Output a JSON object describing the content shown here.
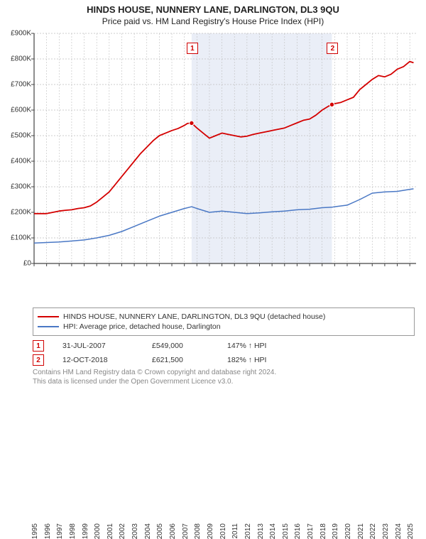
{
  "title": "HINDS HOUSE, NUNNERY LANE, DARLINGTON, DL3 9QU",
  "subtitle": "Price paid vs. HM Land Registry's House Price Index (HPI)",
  "chart": {
    "type": "line",
    "background_color": "#ffffff",
    "axis_color": "#444444",
    "grid_color": "#bfbfbf",
    "band_fill": "#eaeef7",
    "band_start_year": 2007.58,
    "band_end_year": 2018.78,
    "ylim": [
      0,
      900000
    ],
    "y_ticks": [
      0,
      100000,
      200000,
      300000,
      400000,
      500000,
      600000,
      700000,
      800000,
      900000
    ],
    "y_tick_labels": [
      "£0",
      "£100K",
      "£200K",
      "£300K",
      "£400K",
      "£500K",
      "£600K",
      "£700K",
      "£800K",
      "£900K"
    ],
    "xlim": [
      1995,
      2025.5
    ],
    "x_ticks": [
      1995,
      1996,
      1997,
      1998,
      1999,
      2000,
      2001,
      2002,
      2003,
      2004,
      2005,
      2006,
      2007,
      2008,
      2009,
      2010,
      2011,
      2012,
      2013,
      2014,
      2015,
      2016,
      2017,
      2018,
      2019,
      2020,
      2021,
      2022,
      2023,
      2024,
      2025
    ],
    "axis_fontsize": 10,
    "series": [
      {
        "id": "property",
        "color": "#d40000",
        "line_width": 1.8,
        "label": "HINDS HOUSE, NUNNERY LANE, DARLINGTON, DL3 9QU (detached house)",
        "x": [
          1995,
          1995.5,
          1996,
          1996.5,
          1997,
          1997.5,
          1998,
          1998.5,
          1999,
          1999.5,
          2000,
          2000.5,
          2001,
          2001.5,
          2002,
          2002.5,
          2003,
          2003.5,
          2004,
          2004.5,
          2005,
          2005.5,
          2006,
          2006.5,
          2007,
          2007.25,
          2007.58,
          2008,
          2008.5,
          2009,
          2009.5,
          2010,
          2010.5,
          2011,
          2011.5,
          2012,
          2012.5,
          2013,
          2013.5,
          2014,
          2014.5,
          2015,
          2015.5,
          2016,
          2016.5,
          2017,
          2017.5,
          2018,
          2018.5,
          2018.78,
          2019,
          2019.5,
          2020,
          2020.5,
          2021,
          2021.5,
          2022,
          2022.5,
          2023,
          2023.5,
          2024,
          2024.5,
          2025,
          2025.3
        ],
        "y": [
          195000,
          195000,
          195000,
          200000,
          205000,
          208000,
          210000,
          215000,
          218000,
          225000,
          240000,
          260000,
          280000,
          310000,
          340000,
          370000,
          400000,
          430000,
          455000,
          480000,
          500000,
          510000,
          520000,
          528000,
          540000,
          548000,
          549000,
          530000,
          510000,
          490000,
          500000,
          510000,
          505000,
          500000,
          495000,
          498000,
          505000,
          510000,
          515000,
          520000,
          525000,
          530000,
          540000,
          550000,
          560000,
          565000,
          580000,
          600000,
          615000,
          621500,
          625000,
          630000,
          640000,
          650000,
          680000,
          700000,
          720000,
          735000,
          730000,
          740000,
          760000,
          770000,
          790000,
          785000
        ]
      },
      {
        "id": "hpi",
        "color": "#4a78c5",
        "line_width": 1.5,
        "label": "HPI: Average price, detached house, Darlington",
        "x": [
          1995,
          1996,
          1997,
          1998,
          1999,
          2000,
          2001,
          2002,
          2003,
          2004,
          2005,
          2006,
          2007,
          2007.58,
          2008,
          2009,
          2010,
          2011,
          2012,
          2013,
          2014,
          2015,
          2016,
          2017,
          2018,
          2018.78,
          2019,
          2020,
          2021,
          2022,
          2023,
          2024,
          2025,
          2025.3
        ],
        "y": [
          80000,
          82000,
          84000,
          88000,
          92000,
          100000,
          110000,
          125000,
          145000,
          165000,
          185000,
          200000,
          215000,
          222000,
          215000,
          200000,
          205000,
          200000,
          195000,
          198000,
          202000,
          205000,
          210000,
          212000,
          218000,
          220000,
          222000,
          228000,
          250000,
          275000,
          280000,
          282000,
          290000,
          292000
        ]
      }
    ],
    "markers": [
      {
        "n": "1",
        "x": 2007.58,
        "y": 549000,
        "badge_y": 844000
      },
      {
        "n": "2",
        "x": 2018.78,
        "y": 621500,
        "badge_y": 844000
      }
    ]
  },
  "legend": {
    "items": [
      {
        "series": "property"
      },
      {
        "series": "hpi"
      }
    ]
  },
  "marker_rows": [
    {
      "n": "1",
      "date": "31-JUL-2007",
      "price": "£549,000",
      "hpi": "147% ↑ HPI"
    },
    {
      "n": "2",
      "date": "12-OCT-2018",
      "price": "£621,500",
      "hpi": "182% ↑ HPI"
    }
  ],
  "footer": {
    "line1": "Contains HM Land Registry data © Crown copyright and database right 2024.",
    "line2": "This data is licensed under the Open Government Licence v3.0."
  }
}
